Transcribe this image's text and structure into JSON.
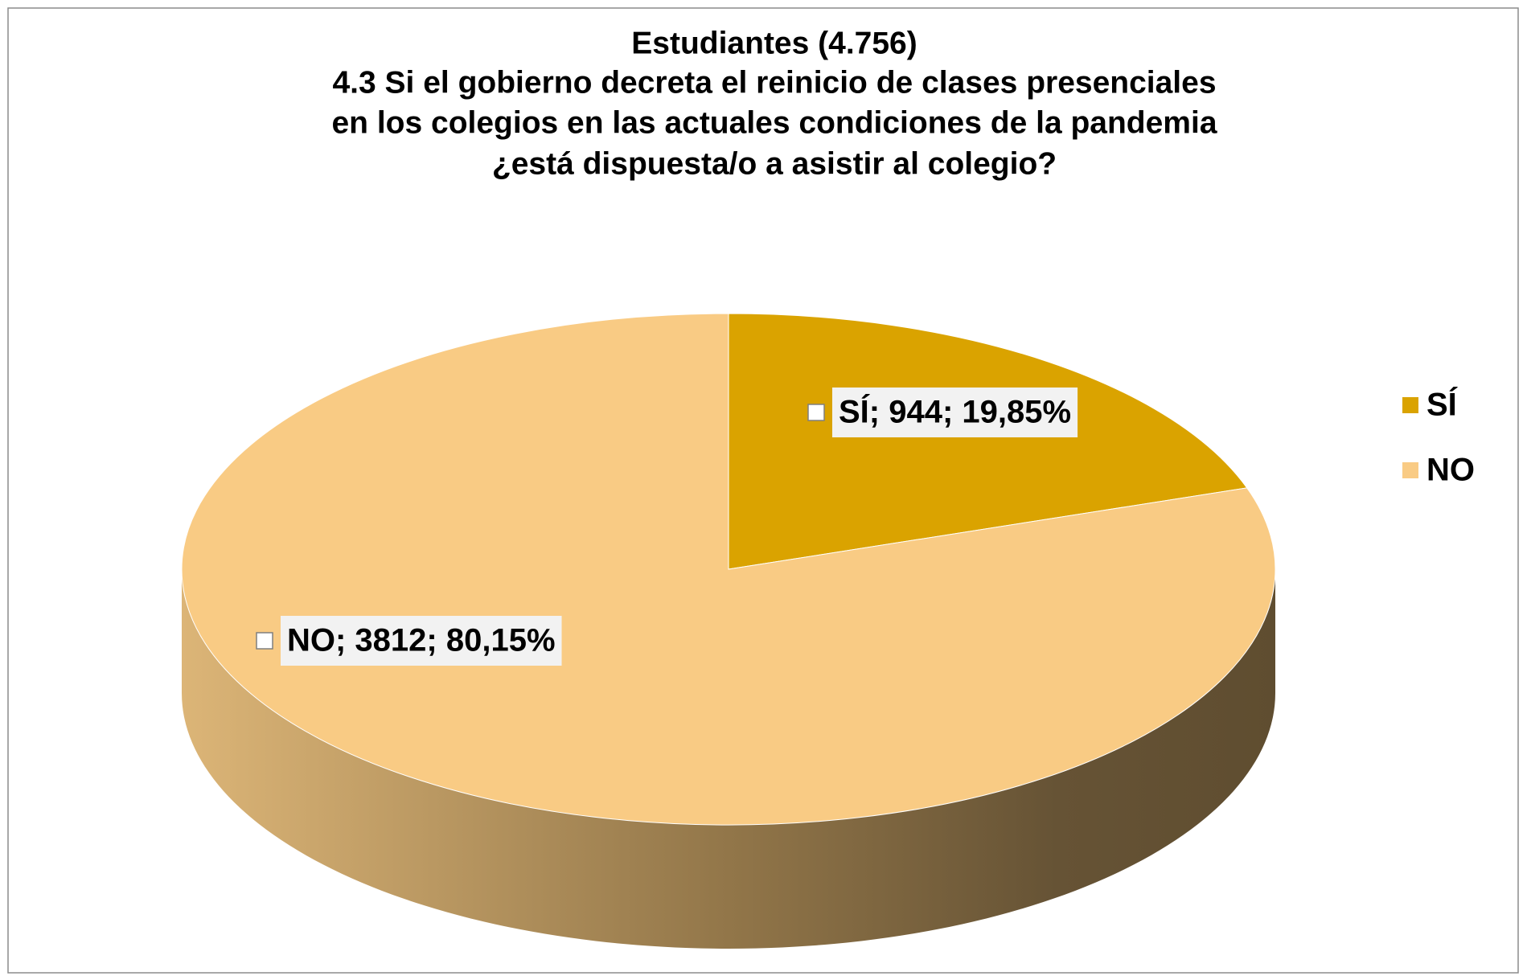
{
  "chart_data": {
    "type": "pie",
    "title": [
      "Estudiantes (4.756)",
      "4.3 Si el gobierno decreta el reinicio de clases presenciales",
      "en los colegios en las actuales condiciones de la pandemia",
      "¿está dispuesta/o a asistir al colegio?"
    ],
    "categories": [
      "SÍ",
      "NO"
    ],
    "values": [
      944,
      3812
    ],
    "value_labels": [
      "SÍ; 944; 19,85%",
      "NO; 3812; 80,15%"
    ],
    "colors": [
      "#daa300",
      "#f9cb84"
    ],
    "legend": "right"
  }
}
